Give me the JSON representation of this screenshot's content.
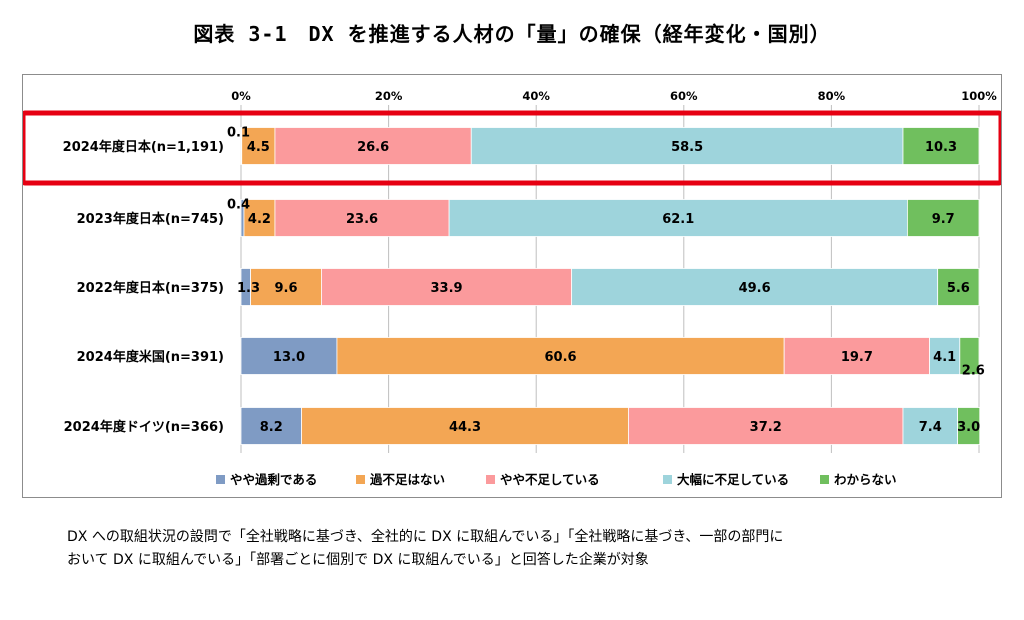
{
  "figure": {
    "title": "図表 3-1　DX を推進する人材の「量」の確保（経年変化・国別）",
    "note": [
      "DX への取組状況の設問で「全社戦略に基づき、全社的に DX に取組んでいる」「全社戦略に基づき、一部の部門に",
      "おいて DX に取組んでいる」「部署ごとに個別で DX に取組んでいる」と回答した企業が対象"
    ]
  },
  "colors": {
    "series": [
      "#7F9BC4",
      "#F3A654",
      "#FB9A9C",
      "#9ED4DC",
      "#70BF5E"
    ],
    "highlight": "#E60012",
    "grid": "#BFBFBF"
  },
  "chart_data": {
    "type": "bar",
    "orientation": "horizontal",
    "stacked": true,
    "categories": [
      "2024年度日本(n=1,191)",
      "2023年度日本(n=745)",
      "2022年度日本(n=375)",
      "2024年度米国(n=391)",
      "2024年度ドイツ(n=366)"
    ],
    "series": [
      {
        "name": "やや過剰である",
        "values": [
          0.1,
          0.4,
          1.3,
          13.0,
          8.2
        ],
        "labels": [
          "0.1",
          "0.4",
          "1.3",
          "13.0",
          "8.2"
        ]
      },
      {
        "name": "過不足はない",
        "values": [
          4.5,
          4.2,
          9.6,
          60.6,
          44.3
        ],
        "labels": [
          "4.5",
          "4.2",
          "9.6",
          "60.6",
          "44.3"
        ]
      },
      {
        "name": "やや不足している",
        "values": [
          26.6,
          23.6,
          33.9,
          19.7,
          37.2
        ],
        "labels": [
          "26.6",
          "23.6",
          "33.9",
          "19.7",
          "37.2"
        ]
      },
      {
        "name": "大幅に不足している",
        "values": [
          58.5,
          62.1,
          49.6,
          4.1,
          7.4
        ],
        "labels": [
          "58.5",
          "62.1",
          "49.6",
          "4.1",
          "7.4"
        ]
      },
      {
        "name": "わからない",
        "values": [
          10.3,
          9.7,
          5.6,
          2.6,
          3.0
        ],
        "labels": [
          "10.3",
          "9.7",
          "5.6",
          "2.6",
          "3.0"
        ]
      }
    ],
    "xticks": [
      "0%",
      "20%",
      "40%",
      "60%",
      "80%",
      "100%"
    ],
    "xlim": [
      0,
      100
    ],
    "legend_position": "bottom",
    "highlighted_category": "2024年度日本(n=1,191)"
  }
}
